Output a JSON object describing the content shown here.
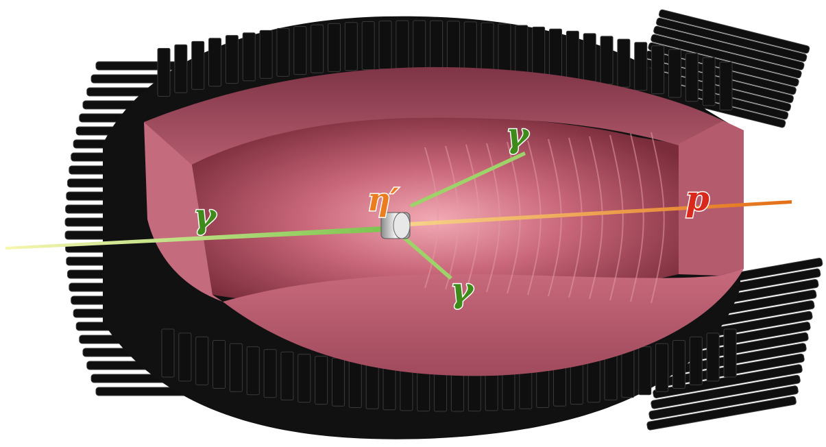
{
  "labels": {
    "gamma_upper": "γ",
    "gamma_left": "γ",
    "gamma_lower": "γ",
    "eta_prime": "η′",
    "proton": "p"
  },
  "colors": {
    "crystal": "#0f0f0f",
    "crystal_highlight": "#3a3a3a",
    "inner_wall": "#b9576a",
    "inner_wall_light": "#e49aa6",
    "photon_track": "#9ed36a",
    "proton_track": "#ec8a2c",
    "gamma_label": "#3e8a1a",
    "eta_label": "#e97d1f",
    "proton_label": "#d8291c"
  },
  "icons": {
    "target": "target-cell-icon"
  }
}
